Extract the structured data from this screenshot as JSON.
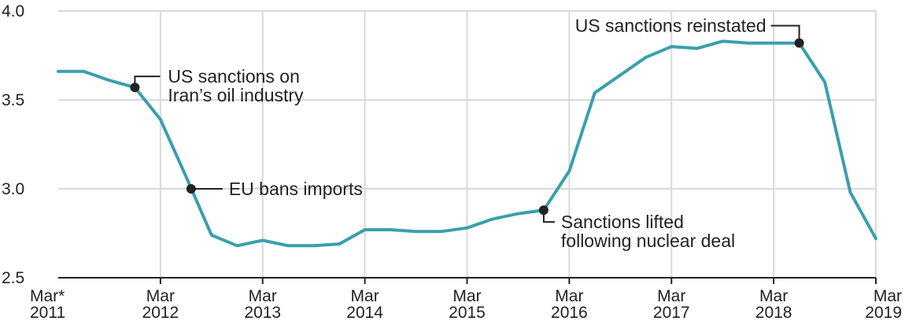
{
  "colors": {
    "series": "#3a9fad",
    "grid": "#d9d9d9",
    "text": "#222222"
  },
  "chart_data": {
    "type": "line",
    "title": "",
    "xlabel": "",
    "ylabel": "",
    "ylim": [
      2.5,
      4.0
    ],
    "yticks": [
      "4.0",
      "3.5",
      "3.0",
      "2.5"
    ],
    "xticks": [
      {
        "month": "Mar*",
        "year": "2011"
      },
      {
        "month": "Mar",
        "year": "2012"
      },
      {
        "month": "Mar",
        "year": "2013"
      },
      {
        "month": "Mar",
        "year": "2014"
      },
      {
        "month": "Mar",
        "year": "2015"
      },
      {
        "month": "Mar",
        "year": "2016"
      },
      {
        "month": "Mar",
        "year": "2017"
      },
      {
        "month": "Mar",
        "year": "2018"
      },
      {
        "month": "Mar",
        "year": "2019"
      }
    ],
    "grid": true,
    "series": [
      {
        "points": [
          {
            "x": 2011.0,
            "y": 3.66
          },
          {
            "x": 2011.25,
            "y": 3.66
          },
          {
            "x": 2011.5,
            "y": 3.61
          },
          {
            "x": 2011.75,
            "y": 3.57
          },
          {
            "x": 2012.0,
            "y": 3.39
          },
          {
            "x": 2012.25,
            "y": 3.07
          },
          {
            "x": 2012.5,
            "y": 2.74
          },
          {
            "x": 2012.75,
            "y": 2.68
          },
          {
            "x": 2013.0,
            "y": 2.71
          },
          {
            "x": 2013.25,
            "y": 2.68
          },
          {
            "x": 2013.5,
            "y": 2.68
          },
          {
            "x": 2013.75,
            "y": 2.69
          },
          {
            "x": 2014.0,
            "y": 2.77
          },
          {
            "x": 2014.25,
            "y": 2.77
          },
          {
            "x": 2014.5,
            "y": 2.76
          },
          {
            "x": 2014.75,
            "y": 2.76
          },
          {
            "x": 2015.0,
            "y": 2.78
          },
          {
            "x": 2015.25,
            "y": 2.83
          },
          {
            "x": 2015.5,
            "y": 2.86
          },
          {
            "x": 2015.75,
            "y": 2.88
          },
          {
            "x": 2016.0,
            "y": 3.1
          },
          {
            "x": 2016.25,
            "y": 3.54
          },
          {
            "x": 2016.5,
            "y": 3.64
          },
          {
            "x": 2016.75,
            "y": 3.74
          },
          {
            "x": 2017.0,
            "y": 3.8
          },
          {
            "x": 2017.25,
            "y": 3.79
          },
          {
            "x": 2017.5,
            "y": 3.83
          },
          {
            "x": 2017.75,
            "y": 3.82
          },
          {
            "x": 2018.0,
            "y": 3.82
          },
          {
            "x": 2018.25,
            "y": 3.82
          },
          {
            "x": 2018.5,
            "y": 3.6
          },
          {
            "x": 2018.75,
            "y": 2.98
          },
          {
            "x": 2019.0,
            "y": 2.72
          }
        ]
      }
    ],
    "annotations": [
      {
        "x": 2011.75,
        "y": 3.57,
        "lines": [
          "US sanctions on",
          "Iran’s oil industry"
        ]
      },
      {
        "x": 2012.3,
        "y": 3.0,
        "lines": [
          "EU bans imports"
        ]
      },
      {
        "x": 2015.75,
        "y": 2.88,
        "lines": [
          "Sanctions lifted",
          "following nuclear deal"
        ]
      },
      {
        "x": 2018.25,
        "y": 3.82,
        "lines": [
          "US sanctions reinstated"
        ]
      }
    ]
  }
}
